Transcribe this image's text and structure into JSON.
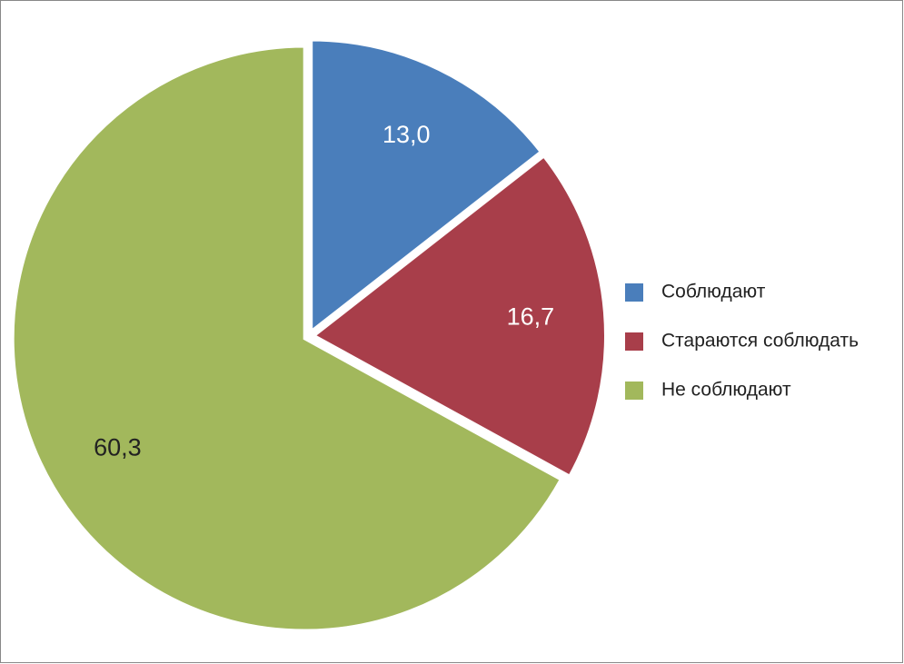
{
  "chart_data": {
    "type": "pie",
    "categories": [
      "Соблюдают",
      "Стараются соблюдать",
      "Не соблюдают"
    ],
    "values": [
      13.0,
      16.7,
      60.3
    ],
    "value_labels": [
      "13,0",
      "16,7",
      "60,3"
    ],
    "colors": [
      "#4a7ebb",
      "#a83e4a",
      "#a2b85c"
    ],
    "legend": "right"
  }
}
